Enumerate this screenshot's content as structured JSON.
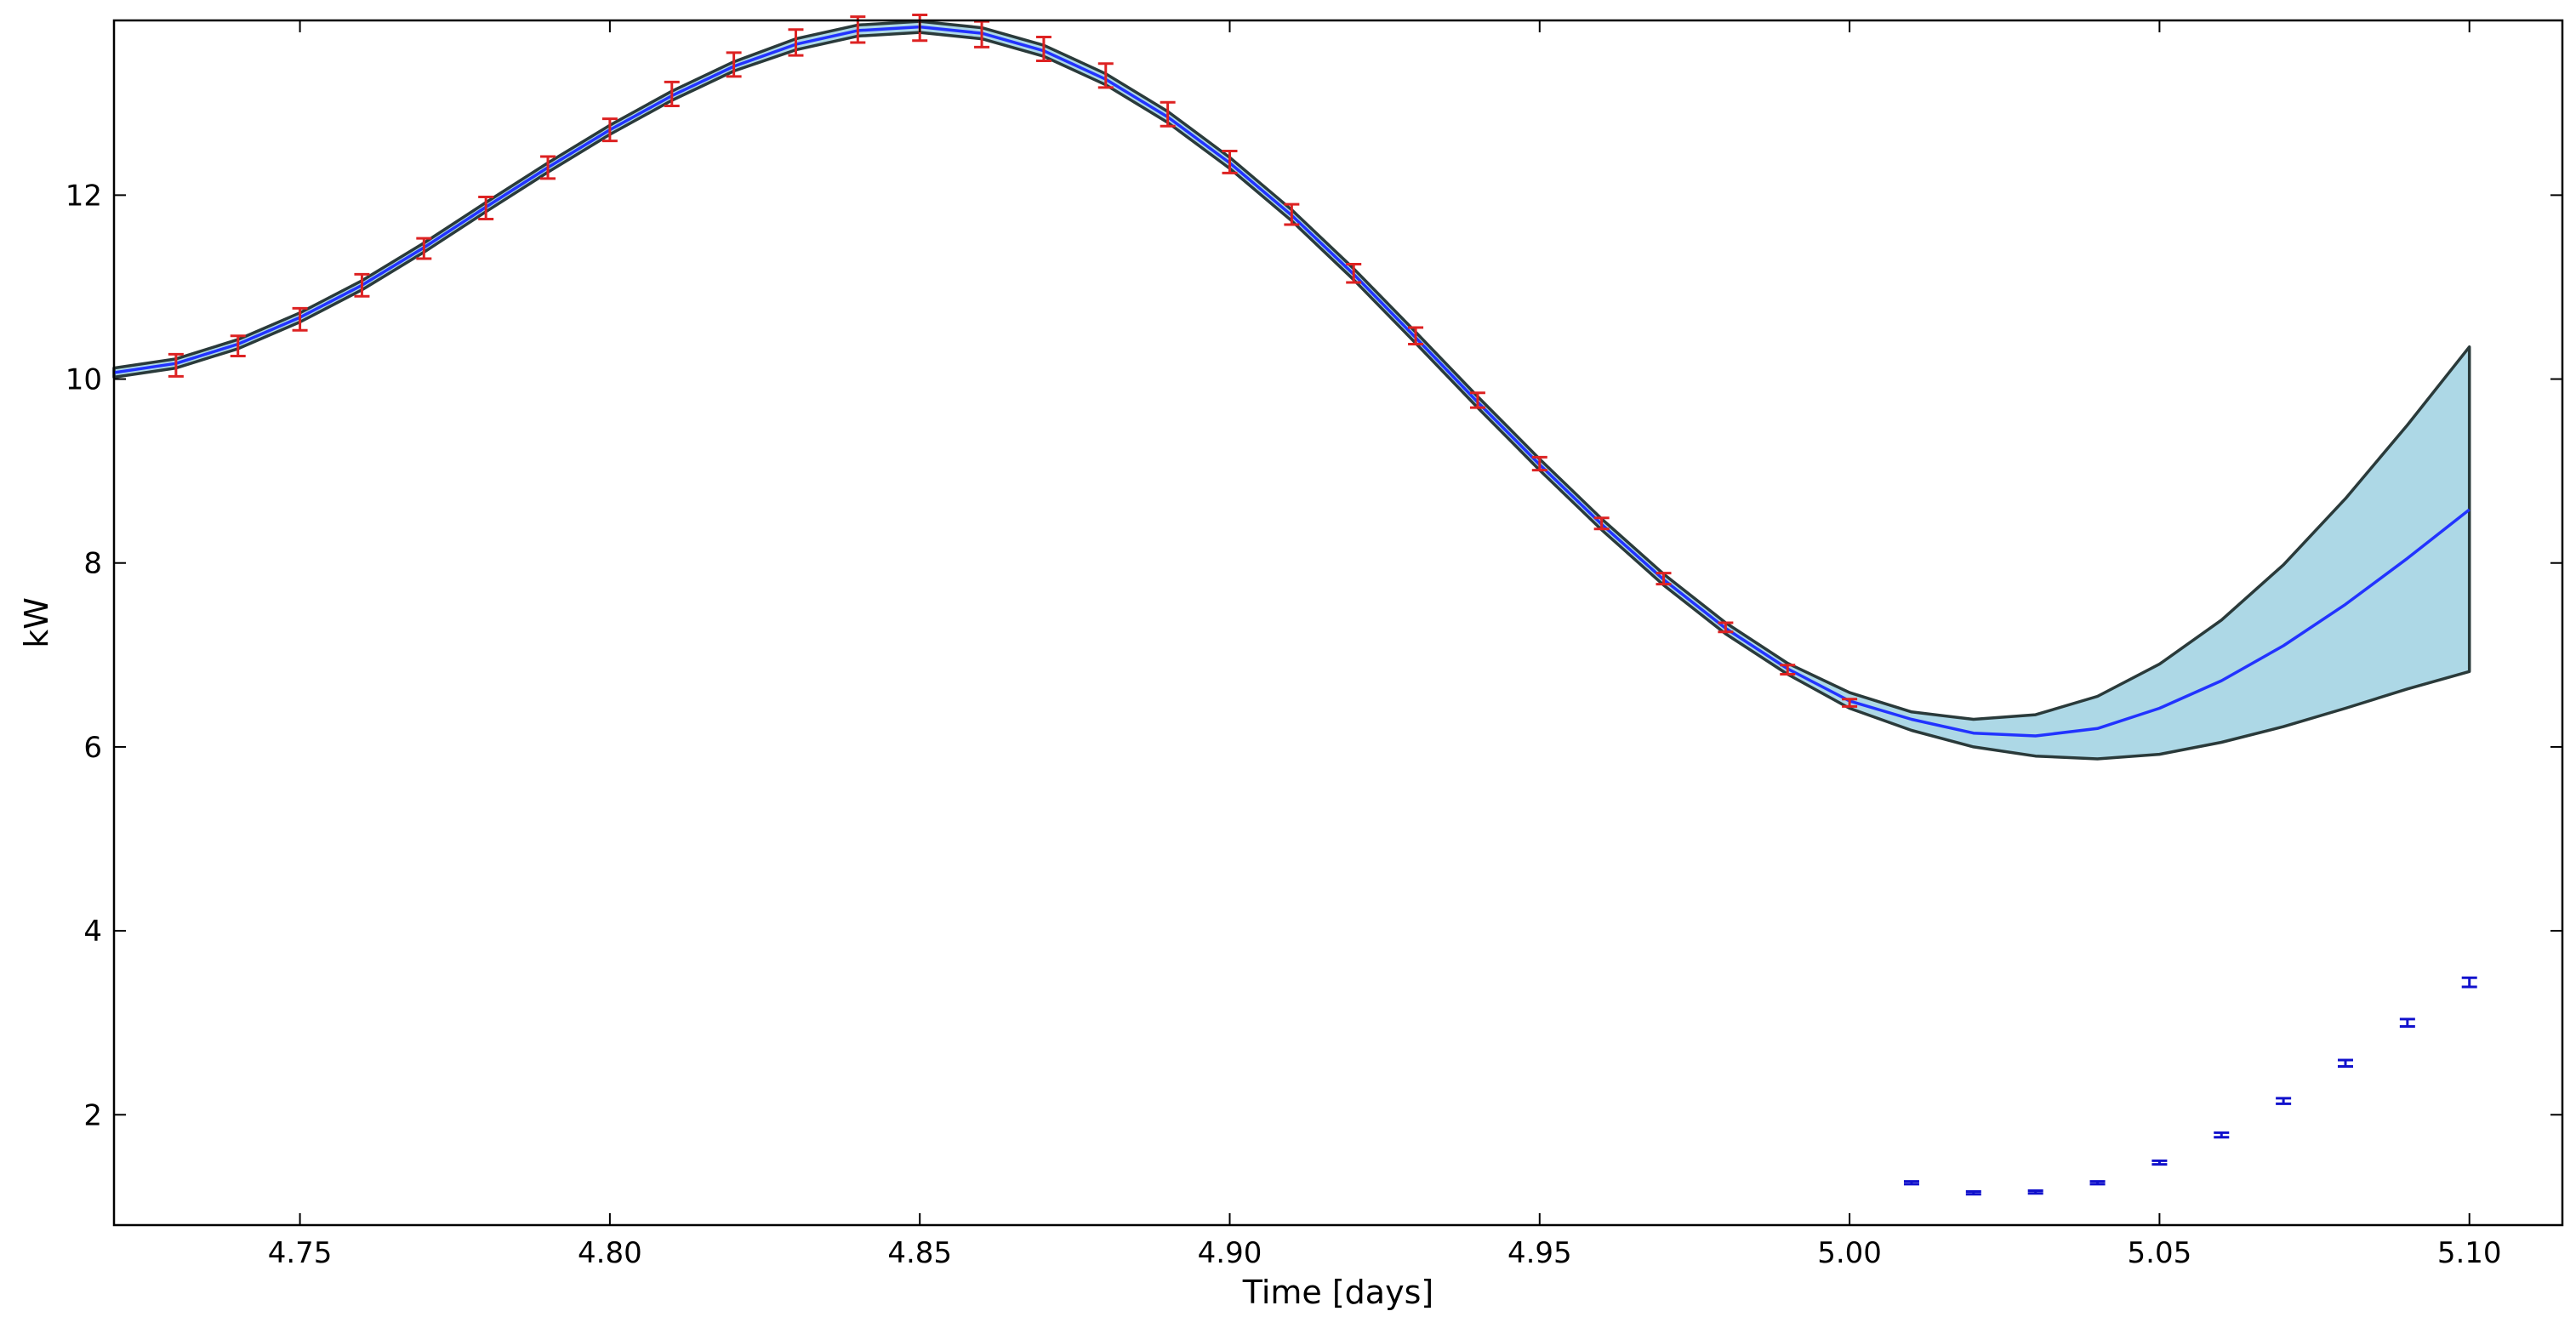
{
  "chart_data": {
    "type": "line",
    "title": "",
    "xlabel": "Time [days]",
    "ylabel": "kW",
    "xlim": [
      4.72,
      5.115
    ],
    "ylim": [
      0.8,
      13.9
    ],
    "xticks": [
      4.75,
      4.8,
      4.85,
      4.9,
      4.95,
      5.0,
      5.05,
      5.1
    ],
    "xtick_labels": [
      "4.75",
      "4.80",
      "4.85",
      "4.90",
      "4.95",
      "5.00",
      "5.05",
      "5.10"
    ],
    "yticks": [
      2,
      4,
      6,
      8,
      10,
      12
    ],
    "ytick_labels": [
      "2",
      "4",
      "6",
      "8",
      "10",
      "12"
    ],
    "grid": false,
    "legend": "none",
    "colors": {
      "band_fill": "#add8e6",
      "band_edge": "#2a3a3a",
      "prediction_line": "#2233ff",
      "observed_errorbar": "#dd2222",
      "forecast_std_errorbar": "#1111cc"
    },
    "prediction": {
      "x": [
        4.72,
        4.73,
        4.74,
        4.75,
        4.76,
        4.77,
        4.78,
        4.79,
        4.8,
        4.81,
        4.82,
        4.83,
        4.84,
        4.85,
        4.86,
        4.87,
        4.88,
        4.89,
        4.9,
        4.91,
        4.92,
        4.93,
        4.94,
        4.95,
        4.96,
        4.97,
        4.98,
        4.99,
        5.0,
        5.01,
        5.02,
        5.03,
        5.04,
        5.05,
        5.06,
        5.07,
        5.08,
        5.09,
        5.1
      ],
      "mean": [
        10.07,
        10.17,
        10.38,
        10.67,
        11.02,
        11.43,
        11.87,
        12.3,
        12.71,
        13.08,
        13.4,
        13.64,
        13.79,
        13.83,
        13.76,
        13.57,
        13.26,
        12.85,
        12.35,
        11.78,
        11.14,
        10.45,
        9.75,
        9.07,
        8.42,
        7.82,
        7.29,
        6.85,
        6.5,
        6.3,
        6.15,
        6.12,
        6.2,
        6.42,
        6.72,
        7.1,
        7.55,
        8.05,
        8.58
      ],
      "upper": [
        10.12,
        10.22,
        10.43,
        10.72,
        11.07,
        11.48,
        11.92,
        12.35,
        12.76,
        13.13,
        13.45,
        13.7,
        13.85,
        13.89,
        13.82,
        13.63,
        13.32,
        12.91,
        12.41,
        11.84,
        11.2,
        10.51,
        9.81,
        9.13,
        8.48,
        7.88,
        7.35,
        6.91,
        6.59,
        6.38,
        6.3,
        6.35,
        6.55,
        6.9,
        7.38,
        7.98,
        8.7,
        9.5,
        10.35
      ],
      "lower": [
        10.02,
        10.12,
        10.33,
        10.62,
        10.97,
        11.38,
        11.82,
        12.25,
        12.66,
        13.03,
        13.35,
        13.58,
        13.73,
        13.77,
        13.7,
        13.51,
        13.2,
        12.79,
        12.29,
        11.72,
        11.08,
        10.39,
        9.69,
        9.01,
        8.36,
        7.76,
        7.23,
        6.79,
        6.42,
        6.18,
        6.0,
        5.9,
        5.87,
        5.92,
        6.05,
        6.22,
        6.42,
        6.63,
        6.82
      ]
    },
    "observed": {
      "x": [
        4.73,
        4.74,
        4.75,
        4.76,
        4.77,
        4.78,
        4.79,
        4.8,
        4.81,
        4.82,
        4.83,
        4.84,
        4.85,
        4.86,
        4.87,
        4.88,
        4.89,
        4.9,
        4.91,
        4.92,
        4.93,
        4.94,
        4.95,
        4.96,
        4.97,
        4.98,
        4.99,
        5.0
      ],
      "y": [
        10.15,
        10.36,
        10.65,
        11.02,
        11.42,
        11.86,
        12.3,
        12.71,
        13.1,
        13.42,
        13.66,
        13.8,
        13.82,
        13.75,
        13.59,
        13.3,
        12.88,
        12.36,
        11.79,
        11.15,
        10.47,
        9.77,
        9.08,
        8.43,
        7.83,
        7.3,
        6.84,
        6.48
      ],
      "err": [
        0.12,
        0.11,
        0.12,
        0.12,
        0.11,
        0.12,
        0.12,
        0.12,
        0.13,
        0.13,
        0.14,
        0.14,
        0.14,
        0.14,
        0.13,
        0.13,
        0.13,
        0.12,
        0.11,
        0.1,
        0.09,
        0.08,
        0.07,
        0.06,
        0.06,
        0.05,
        0.05,
        0.04
      ]
    },
    "forecast_std": {
      "x": [
        5.01,
        5.02,
        5.03,
        5.04,
        5.05,
        5.06,
        5.07,
        5.08,
        5.09,
        5.1
      ],
      "y": [
        1.26,
        1.15,
        1.16,
        1.26,
        1.48,
        1.78,
        2.15,
        2.56,
        3.0,
        3.44
      ],
      "err": [
        0.015,
        0.015,
        0.015,
        0.015,
        0.02,
        0.025,
        0.03,
        0.035,
        0.04,
        0.05
      ]
    }
  }
}
